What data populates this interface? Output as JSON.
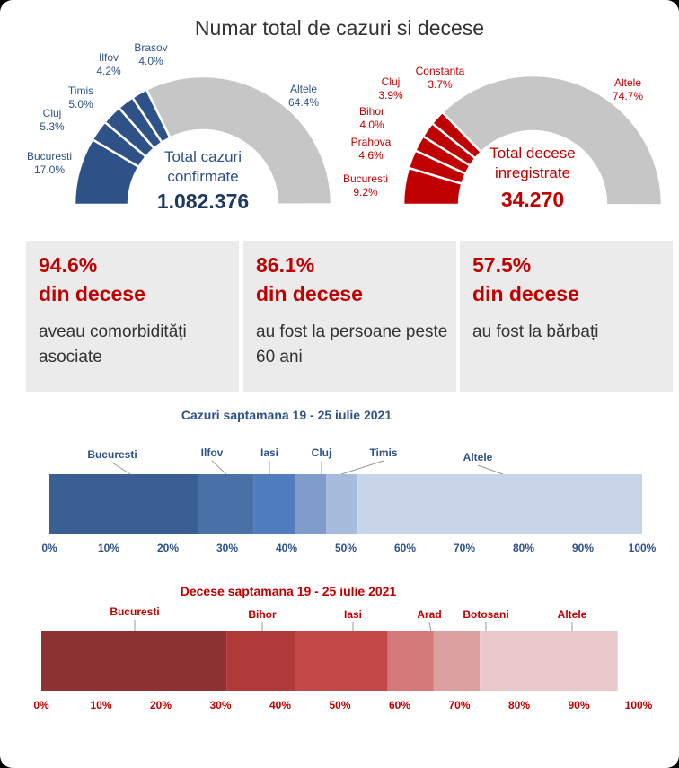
{
  "title": "Numar total de cazuri si decese",
  "cases_chart": {
    "center_label": "Total cazuri confirmate",
    "total": "1.082.376",
    "slices": [
      {
        "name": "Bucuresti",
        "pct": "17.0%",
        "value": 17.0,
        "color": "#2e5288"
      },
      {
        "name": "Cluj",
        "pct": "5.3%",
        "value": 5.3,
        "color": "#2e5288"
      },
      {
        "name": "Timis",
        "pct": "5.0%",
        "value": 5.0,
        "color": "#2e5288"
      },
      {
        "name": "Ilfov",
        "pct": "4.2%",
        "value": 4.2,
        "color": "#2e5288"
      },
      {
        "name": "Brasov",
        "pct": "4.0%",
        "value": 4.0,
        "color": "#2e5288"
      },
      {
        "name": "Altele",
        "pct": "64.4%",
        "value": 64.4,
        "color": "#c6c6c6"
      }
    ]
  },
  "deaths_chart": {
    "center_label": "Total decese inregistrate",
    "total": "34.270",
    "slices": [
      {
        "name": "Bucuresti",
        "pct": "9.2%",
        "value": 9.2,
        "color": "#c00000"
      },
      {
        "name": "Prahova",
        "pct": "4.6%",
        "value": 4.6,
        "color": "#c00000"
      },
      {
        "name": "Bihor",
        "pct": "4.0%",
        "value": 4.0,
        "color": "#c00000"
      },
      {
        "name": "Cluj",
        "pct": "3.9%",
        "value": 3.9,
        "color": "#c00000"
      },
      {
        "name": "Constanta",
        "pct": "3.7%",
        "value": 3.7,
        "color": "#c00000"
      },
      {
        "name": "Altele",
        "pct": "74.7%",
        "value": 74.7,
        "color": "#c6c6c6"
      }
    ]
  },
  "cards": [
    {
      "pct": "94.6%",
      "sub": "din decese",
      "text": "aveau comorbidități asociate"
    },
    {
      "pct": "86.1%",
      "sub": "din decese",
      "text": "au fost la persoane peste 60 ani"
    },
    {
      "pct": "57.5%",
      "sub": "din decese",
      "text": "au fost la bărbați"
    }
  ],
  "chart_data": [
    {
      "type": "bar",
      "orientation": "stacked-horizontal-100%",
      "title": "Cazuri saptamana 19 - 25 iulie 2021",
      "xlim": [
        0,
        100
      ],
      "ticks": [
        "0%",
        "10%",
        "20%",
        "30%",
        "40%",
        "50%",
        "60%",
        "70%",
        "80%",
        "90%",
        "100%"
      ],
      "series": [
        {
          "name": "Bucuresti",
          "value": 25,
          "color": "#3a5f94"
        },
        {
          "name": "Ilfov",
          "value": 9.5,
          "color": "#4a70a8"
        },
        {
          "name": "Iasi",
          "value": 7,
          "color": "#4f7dbf"
        },
        {
          "name": "Cluj",
          "value": 5.2,
          "color": "#7f9ccd"
        },
        {
          "name": "Timis",
          "value": 5.3,
          "color": "#a7bbdc"
        },
        {
          "name": "Altele",
          "value": 48,
          "color": "#c8d4e8"
        }
      ],
      "color": "#2e5288"
    },
    {
      "type": "bar",
      "orientation": "stacked-horizontal-100%",
      "title": "Decese saptamana 19 - 25 iulie 2021",
      "xlim": [
        0,
        100
      ],
      "ticks": [
        "0%",
        "10%",
        "20%",
        "30%",
        "40%",
        "50%",
        "60%",
        "70%",
        "80%",
        "90%",
        "100%"
      ],
      "series": [
        {
          "name": "Bucuresti",
          "value": 31,
          "color": "#8c3232"
        },
        {
          "name": "Bihor",
          "value": 11.5,
          "color": "#b03a3a"
        },
        {
          "name": "Iasi",
          "value": 15.5,
          "color": "#c54848"
        },
        {
          "name": "Arad",
          "value": 7.7,
          "color": "#d47979"
        },
        {
          "name": "Botosani",
          "value": 7.7,
          "color": "#dca0a0"
        },
        {
          "name": "Altele",
          "value": 23.1,
          "color": "#e9c8cb"
        }
      ],
      "color": "#c00000"
    }
  ]
}
